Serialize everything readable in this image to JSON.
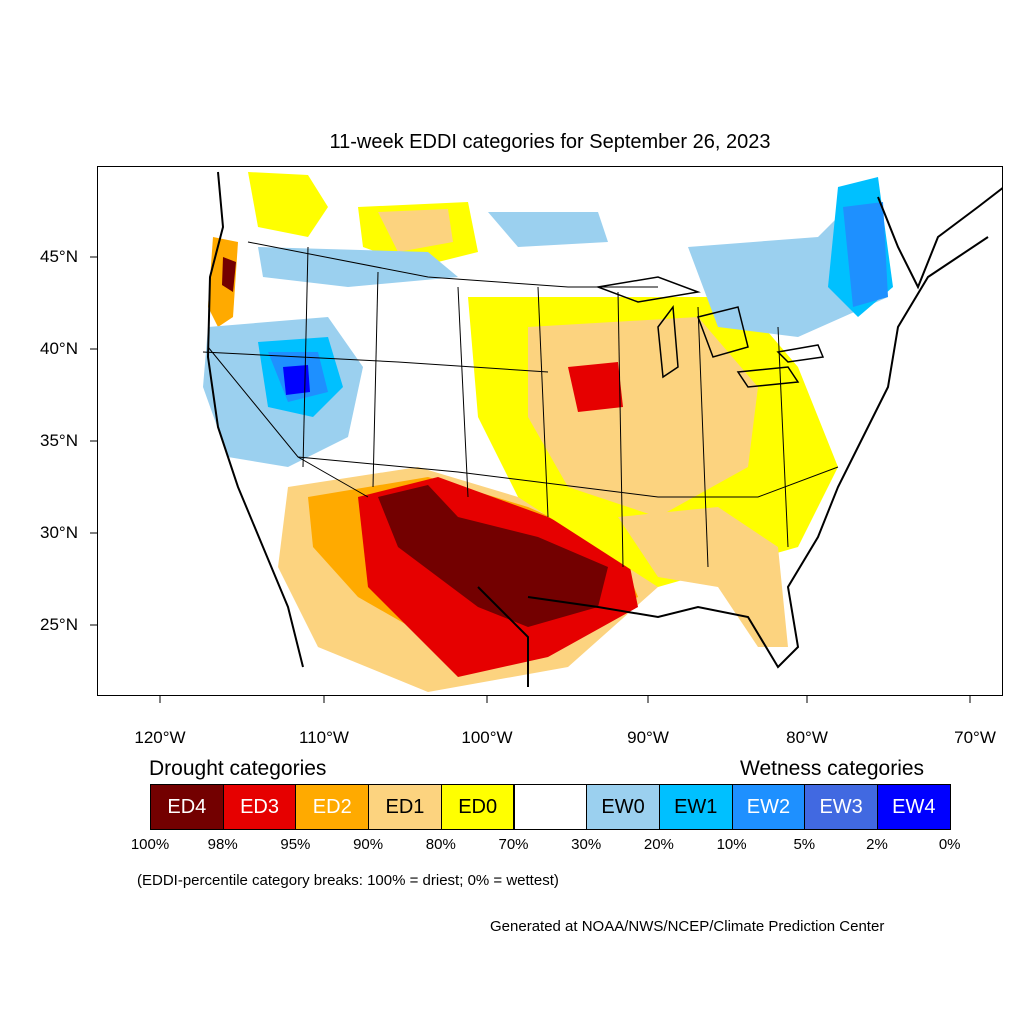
{
  "title": "11-week EDDI categories for September 26, 2023",
  "lat_labels": [
    "45°N",
    "40°N",
    "35°N",
    "30°N",
    "25°N"
  ],
  "lon_labels": [
    "120°W",
    "110°W",
    "100°W",
    "90°W",
    "80°W",
    "70°W"
  ],
  "legend": {
    "drought_heading": "Drought categories",
    "wetness_heading": "Wetness categories",
    "categories": [
      {
        "label": "ED4",
        "color": "#730000",
        "text_color": "#ffffff"
      },
      {
        "label": "ED3",
        "color": "#e60000",
        "text_color": "#ffffff"
      },
      {
        "label": "ED2",
        "color": "#ffaa00",
        "text_color": "#ffffff"
      },
      {
        "label": "ED1",
        "color": "#fcd37f",
        "text_color": "#000000"
      },
      {
        "label": "ED0",
        "color": "#ffff00",
        "text_color": "#000000"
      },
      {
        "label": "",
        "color": "#ffffff",
        "text_color": "#000000"
      },
      {
        "label": "EW0",
        "color": "#9bd0ef",
        "text_color": "#000000"
      },
      {
        "label": "EW1",
        "color": "#00c0ff",
        "text_color": "#000000"
      },
      {
        "label": "EW2",
        "color": "#1e90ff",
        "text_color": "#ffffff"
      },
      {
        "label": "EW3",
        "color": "#4169e1",
        "text_color": "#ffffff"
      },
      {
        "label": "EW4",
        "color": "#0000ff",
        "text_color": "#ffffff"
      }
    ],
    "percent_breaks": [
      "100%",
      "98%",
      "95%",
      "90%",
      "80%",
      "70%",
      "30%",
      "20%",
      "10%",
      "5%",
      "2%",
      "0%"
    ]
  },
  "note": "(EDDI-percentile category breaks: 100% = driest; 0% = wettest)",
  "credit": "Generated at NOAA/NWS/NCEP/Climate Prediction Center"
}
